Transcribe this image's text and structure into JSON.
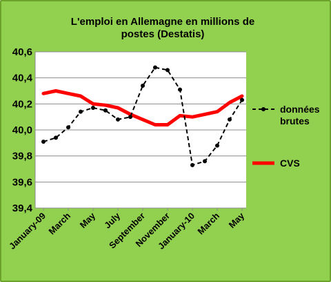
{
  "chart_data": {
    "type": "line",
    "title": [
      "L'emploi en Allemagne en millions de",
      "postes  (Destatis)"
    ],
    "ylim": [
      39.4,
      40.6
    ],
    "yticks": [
      "39,4",
      "39,6",
      "39,8",
      "40,0",
      "40,2",
      "40,4",
      "40,6"
    ],
    "ytick_values": [
      39.4,
      39.6,
      39.8,
      40.0,
      40.2,
      40.4,
      40.6
    ],
    "x_count": 17,
    "xtick_labels": [
      {
        "label": "January-09",
        "index": 0
      },
      {
        "label": "March",
        "index": 2
      },
      {
        "label": "May",
        "index": 4
      },
      {
        "label": "July",
        "index": 6
      },
      {
        "label": "September",
        "index": 8
      },
      {
        "label": "November",
        "index": 10
      },
      {
        "label": "January-10",
        "index": 12
      },
      {
        "label": "March",
        "index": 14
      },
      {
        "label": "May",
        "index": 16
      }
    ],
    "grid": true,
    "legend_position": "right",
    "series": [
      {
        "name": "données brutes",
        "legend_lines": [
          "données",
          "brutes"
        ],
        "color": "#000000",
        "style": "dashed-markers",
        "values": [
          39.91,
          39.94,
          40.02,
          40.14,
          40.17,
          40.15,
          40.08,
          40.1,
          40.34,
          40.48,
          40.46,
          40.31,
          39.73,
          39.76,
          39.88,
          40.08,
          40.23
        ]
      },
      {
        "name": "CVS",
        "legend_lines": [
          "CVS"
        ],
        "color": "#ff0000",
        "style": "solid-thick",
        "values": [
          40.28,
          40.3,
          40.28,
          40.26,
          40.2,
          40.19,
          40.17,
          40.12,
          40.08,
          40.04,
          40.04,
          40.11,
          40.1,
          40.12,
          40.14,
          40.21,
          40.26
        ]
      }
    ]
  }
}
